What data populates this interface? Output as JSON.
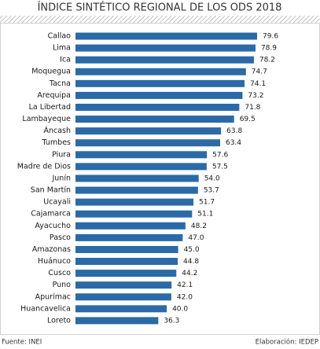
{
  "chart_data": {
    "type": "bar",
    "orientation": "horizontal",
    "title": "ÍNDICE SINTÉTICO REGIONAL DE LOS ODS 2018",
    "categories": [
      "Callao",
      "Lima",
      "Ica",
      "Moquegua",
      "Tacna",
      "Arequipa",
      "La Libertad",
      "Lambayeque",
      "Áncash",
      "Tumbes",
      "Piura",
      "Madre de Dios",
      "Junín",
      "San Martín",
      "Ucayali",
      "Cajamarca",
      "Ayacucho",
      "Pasco",
      "Amazonas",
      "Huánuco",
      "Cusco",
      "Puno",
      "Apurímac",
      "Huancavelica",
      "Loreto"
    ],
    "values": [
      79.6,
      78.9,
      78.2,
      74.7,
      74.1,
      73.2,
      71.8,
      69.5,
      63.8,
      63.4,
      57.6,
      57.5,
      54.0,
      53.7,
      51.7,
      51.1,
      48.2,
      47.0,
      45.0,
      44.8,
      44.2,
      42.1,
      42.0,
      40.0,
      36.3
    ],
    "value_labels": [
      "79.6",
      "78.9",
      "78.2",
      "74.7",
      "74.1",
      "73.2",
      "71.8",
      "69.5",
      "63.8",
      "63.4",
      "57.6",
      "57.5",
      "54.0",
      "53.7",
      "51.7",
      "51.1",
      "48.2",
      "47.0",
      "45.0",
      "44.8",
      "44.2",
      "42.1",
      "42.0",
      "40.0",
      "36.3"
    ],
    "color": "#2b6aa6",
    "source": "Fuente: INEI",
    "credit": "Elaboración: IEDEP"
  }
}
